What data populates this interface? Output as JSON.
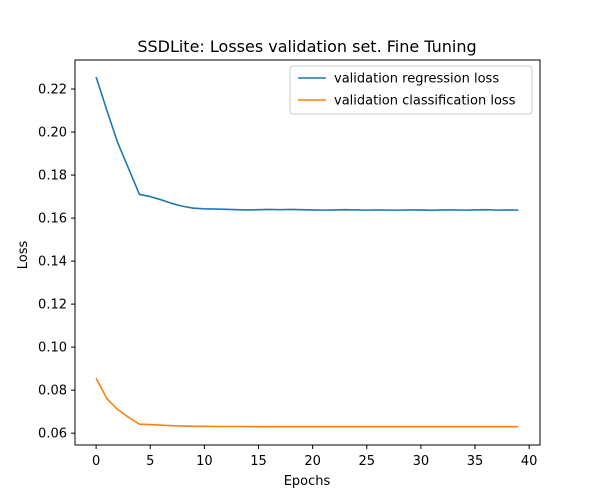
{
  "chart_data": {
    "type": "line",
    "title": "SSDLite: Losses validation set. Fine Tuning",
    "xlabel": "Epochs",
    "ylabel": "Loss",
    "xlim": [
      -1.95,
      41.0
    ],
    "ylim": [
      0.0545,
      0.2335
    ],
    "xticks": [
      0,
      5,
      10,
      15,
      20,
      25,
      30,
      35,
      40
    ],
    "yticks": [
      0.06,
      0.08,
      0.1,
      0.12,
      0.14,
      0.16,
      0.18,
      0.2,
      0.22
    ],
    "xtick_labels": [
      "0",
      "5",
      "10",
      "15",
      "20",
      "25",
      "30",
      "35",
      "40"
    ],
    "ytick_labels": [
      "0.06",
      "0.08",
      "0.10",
      "0.12",
      "0.14",
      "0.16",
      "0.18",
      "0.20",
      "0.22"
    ],
    "grid": false,
    "legend_position": "top-right",
    "x": [
      0,
      1,
      2,
      3,
      4,
      5,
      6,
      7,
      8,
      9,
      10,
      11,
      12,
      13,
      14,
      15,
      16,
      17,
      18,
      19,
      20,
      21,
      22,
      23,
      24,
      25,
      26,
      27,
      28,
      29,
      30,
      31,
      32,
      33,
      34,
      35,
      36,
      37,
      38,
      39
    ],
    "series": [
      {
        "name": "validation regression loss",
        "color": "#1f77b4",
        "values": [
          0.2256,
          0.21,
          0.195,
          0.183,
          0.171,
          0.17,
          0.1685,
          0.1668,
          0.1655,
          0.1646,
          0.1643,
          0.1642,
          0.1641,
          0.1639,
          0.1638,
          0.1639,
          0.164,
          0.1639,
          0.164,
          0.1639,
          0.1638,
          0.1637,
          0.1638,
          0.1639,
          0.1638,
          0.1637,
          0.1638,
          0.1637,
          0.1637,
          0.1638,
          0.1638,
          0.1636,
          0.1638,
          0.1638,
          0.1637,
          0.1638,
          0.1639,
          0.1637,
          0.1638,
          0.1637
        ]
      },
      {
        "name": "validation classification loss",
        "color": "#ff7f0e",
        "values": [
          0.0855,
          0.076,
          0.071,
          0.0673,
          0.0642,
          0.064,
          0.0637,
          0.0635,
          0.0633,
          0.0632,
          0.0632,
          0.0631,
          0.0631,
          0.0631,
          0.063,
          0.063,
          0.063,
          0.063,
          0.063,
          0.063,
          0.063,
          0.063,
          0.063,
          0.063,
          0.063,
          0.063,
          0.063,
          0.063,
          0.063,
          0.063,
          0.063,
          0.063,
          0.063,
          0.063,
          0.063,
          0.063,
          0.063,
          0.063,
          0.063,
          0.063
        ]
      }
    ]
  }
}
